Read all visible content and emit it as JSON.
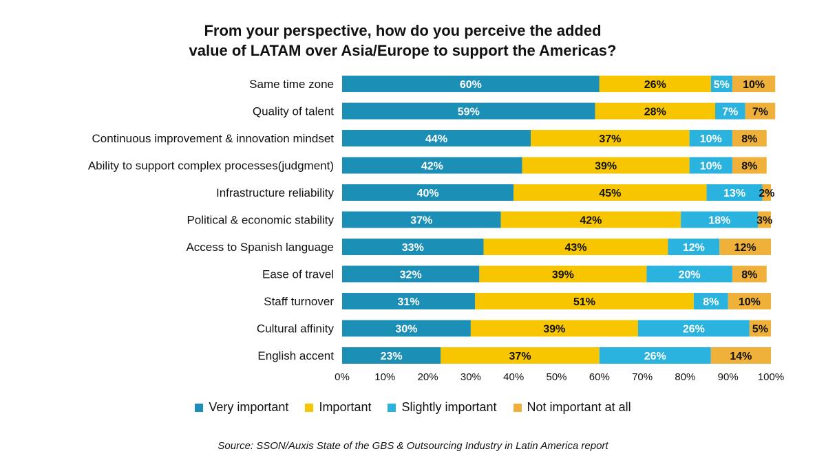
{
  "chart_data": {
    "type": "bar",
    "orientation": "horizontal",
    "stacked": true,
    "title_lines": [
      "From your perspective, how do you perceive the added",
      "value of LATAM over Asia/Europe to support the Americas?"
    ],
    "categories": [
      "Same time zone",
      "Quality of talent",
      "Continuous improvement & innovation mindset",
      "Ability to support complex processes(judgment)",
      "Infrastructure reliability",
      "Political & economic stability",
      "Access to Spanish language",
      "Ease of travel",
      "Staff turnover",
      "Cultural affinity",
      "English accent"
    ],
    "series": [
      {
        "name": "Very important",
        "color": "#1b8fb5",
        "label_color": "#ffffff",
        "values": [
          60,
          59,
          44,
          42,
          40,
          37,
          33,
          32,
          31,
          30,
          23
        ]
      },
      {
        "name": "Important",
        "color": "#f7c600",
        "label_color": "#111111",
        "values": [
          26,
          28,
          37,
          39,
          45,
          42,
          43,
          39,
          51,
          39,
          37
        ]
      },
      {
        "name": "Slightly important",
        "color": "#2bb3e0",
        "label_color": "#ffffff",
        "values": [
          5,
          7,
          10,
          10,
          13,
          18,
          12,
          20,
          8,
          26,
          26
        ]
      },
      {
        "name": "Not important at all",
        "color": "#f0b13a",
        "label_color": "#111111",
        "values": [
          10,
          7,
          8,
          8,
          2,
          3,
          12,
          8,
          10,
          5,
          14
        ]
      }
    ],
    "xlim": [
      0,
      100
    ],
    "xticks": [
      "0%",
      "10%",
      "20%",
      "30%",
      "40%",
      "50%",
      "60%",
      "70%",
      "80%",
      "90%",
      "100%"
    ],
    "value_suffix": "%",
    "legend_position": "bottom"
  },
  "source": "Source: SSON/Auxis State of the GBS & Outsourcing Industry in Latin America report"
}
